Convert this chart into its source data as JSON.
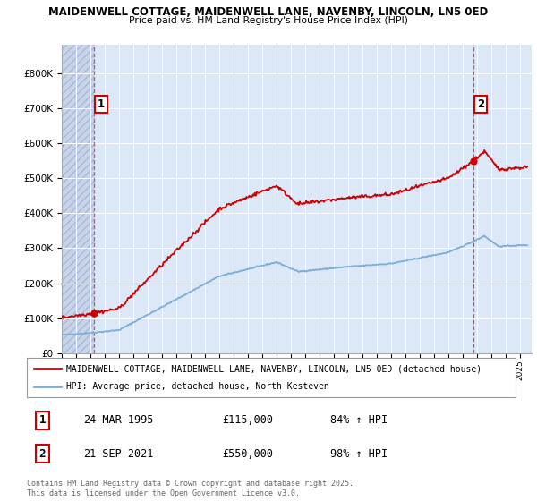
{
  "title1": "MAIDENWELL COTTAGE, MAIDENWELL LANE, NAVENBY, LINCOLN, LN5 0ED",
  "title2": "Price paid vs. HM Land Registry's House Price Index (HPI)",
  "plot_bg": "#dce8f8",
  "hatch_facecolor": "#c8d4ec",
  "hatch_edgecolor": "#aabad0",
  "grid_color": "#ffffff",
  "red_color": "#cc0000",
  "blue_color": "#7aaed6",
  "sale1_x": 1995.23,
  "sale1_price": 115000,
  "sale2_x": 2021.73,
  "sale2_price": 550000,
  "legend1": "MAIDENWELL COTTAGE, MAIDENWELL LANE, NAVENBY, LINCOLN, LN5 0ED (detached house)",
  "legend2": "HPI: Average price, detached house, North Kesteven",
  "footnote": "Contains HM Land Registry data © Crown copyright and database right 2025.\nThis data is licensed under the Open Government Licence v3.0.",
  "table": [
    {
      "num": "1",
      "date": "24-MAR-1995",
      "price": "£115,000",
      "hpi": "84% ↑ HPI"
    },
    {
      "num": "2",
      "date": "21-SEP-2021",
      "price": "£550,000",
      "hpi": "98% ↑ HPI"
    }
  ],
  "ylim": [
    0,
    880000
  ],
  "xlim_start": 1993.0,
  "xlim_end": 2025.8,
  "yticks": [
    0,
    100000,
    200000,
    300000,
    400000,
    500000,
    600000,
    700000,
    800000
  ],
  "ylabels": [
    "£0",
    "£100K",
    "£200K",
    "£300K",
    "£400K",
    "£500K",
    "£600K",
    "£700K",
    "£800K"
  ]
}
